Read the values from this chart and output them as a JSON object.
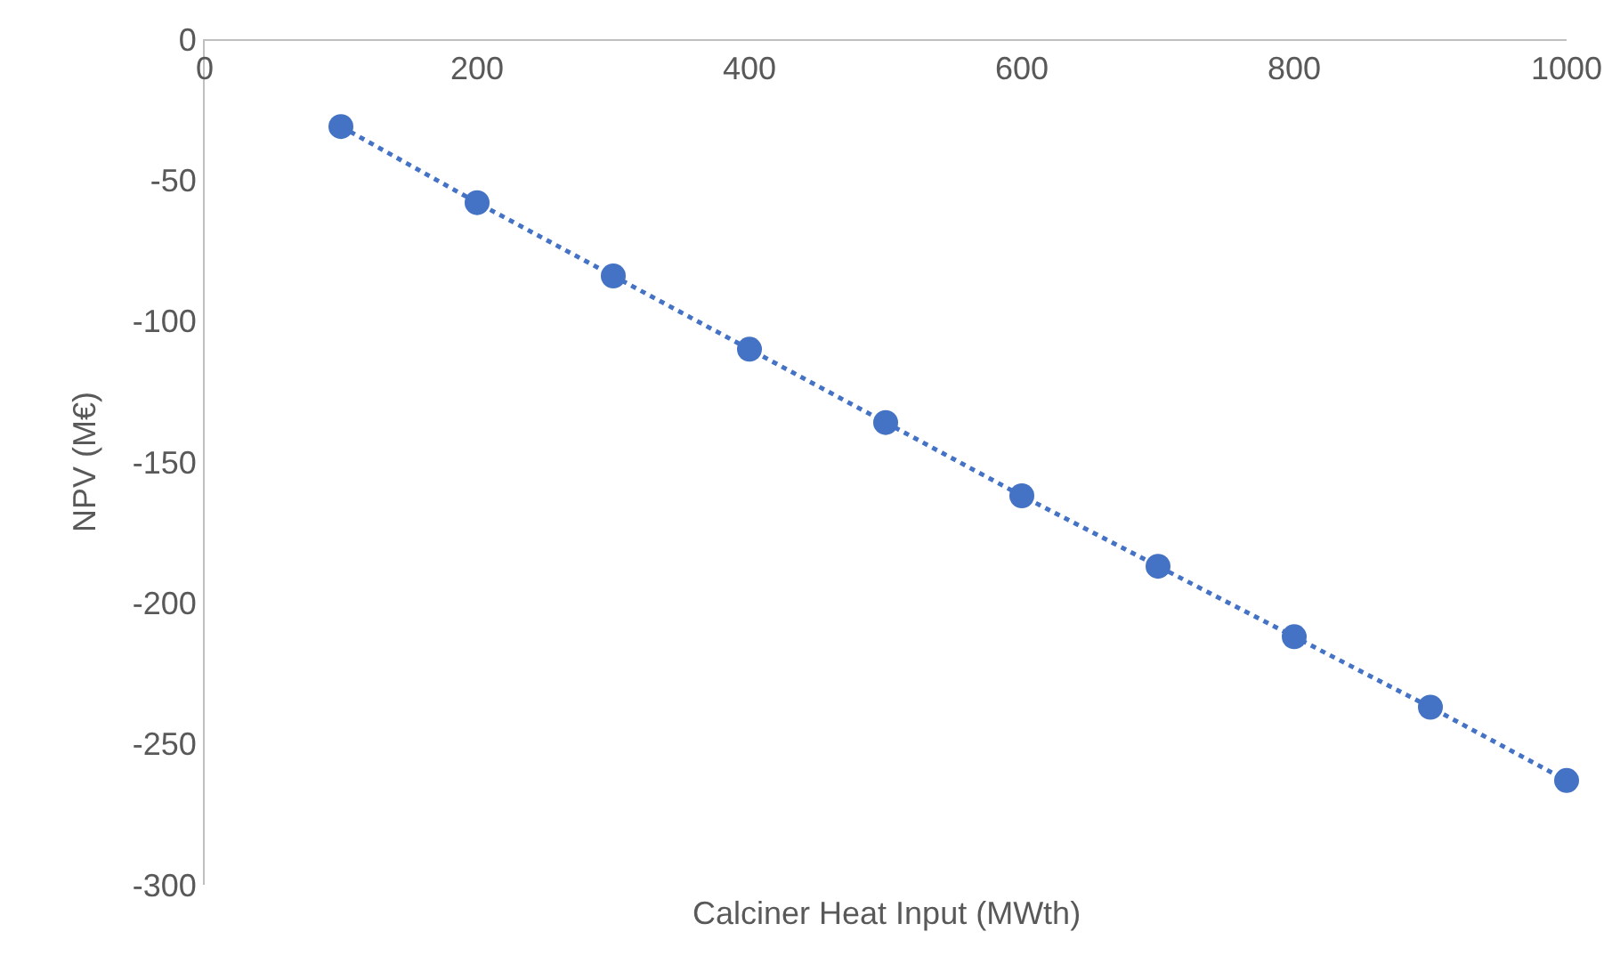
{
  "chart_data": {
    "type": "line",
    "xlabel": "Calciner Heat Input (MWth)",
    "ylabel": "NPV (M€)",
    "x": [
      100,
      200,
      300,
      400,
      500,
      600,
      700,
      800,
      900,
      1000
    ],
    "series": [
      {
        "color": "#4472c4",
        "values": [
          -31,
          -58,
          -84,
          -110,
          -136,
          -162,
          -187,
          -212,
          -237,
          -263
        ]
      }
    ],
    "xlim": [
      0,
      1000
    ],
    "xticks": [
      0,
      200,
      400,
      600,
      800,
      1000
    ],
    "ylim": [
      -300,
      0
    ],
    "yticks": [
      -300,
      -250,
      -200,
      -150,
      -100,
      -50,
      0
    ],
    "grid": false,
    "legend": false,
    "marker": "circle",
    "line_style": "dotted"
  }
}
